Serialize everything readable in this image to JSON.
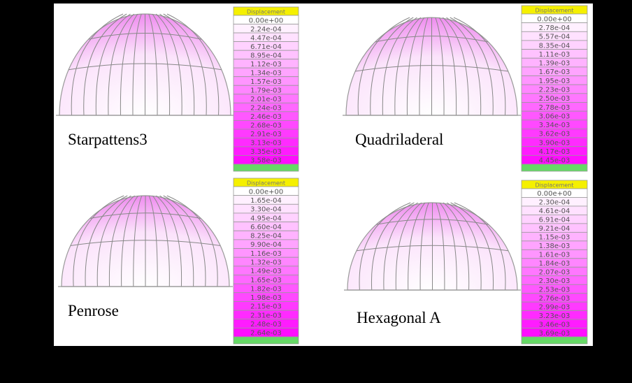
{
  "panels": [
    {
      "label": "Starpattens3",
      "legend": {
        "title": "Displacement",
        "entries": [
          "0.00e+00",
          "2.24e-04",
          "4.47e-04",
          "6.71e-04",
          "8.95e-04",
          "1.12e-03",
          "1.34e-03",
          "1.57e-03",
          "1.79e-03",
          "2.01e-03",
          "2.24e-03",
          "2.46e-03",
          "2.68e-03",
          "2.91e-03",
          "3.13e-03",
          "3.35e-03",
          "3.58e-03"
        ]
      }
    },
    {
      "label": "Quadriladeral",
      "legend": {
        "title": "Displacement",
        "entries": [
          "0.00e+00",
          "2.78e-04",
          "5.57e-04",
          "8.35e-04",
          "1.11e-03",
          "1.39e-03",
          "1.67e-03",
          "1.95e-03",
          "2.23e-03",
          "2.50e-03",
          "2.78e-03",
          "3.06e-03",
          "3.34e-03",
          "3.62e-03",
          "3.90e-03",
          "4.17e-03",
          "4.45e-03"
        ]
      }
    },
    {
      "label": "Penrose",
      "legend": {
        "title": "Displacement",
        "entries": [
          "0.00e+00",
          "1.65e-04",
          "3.30e-04",
          "4.95e-04",
          "6.60e-04",
          "8.25e-04",
          "9.90e-04",
          "1.16e-03",
          "1.32e-03",
          "1.49e-03",
          "1.65e-03",
          "1.82e-03",
          "1.98e-03",
          "2.15e-03",
          "2.31e-03",
          "2.48e-03",
          "2.64e-03"
        ]
      }
    },
    {
      "label": "Hexagonal A",
      "legend": {
        "title": "Displacement",
        "entries": [
          "0.00e+00",
          "2.30e-04",
          "4.61e-04",
          "6.91e-04",
          "9.21e-04",
          "1.15e-03",
          "1.38e-03",
          "1.61e-03",
          "1.84e-03",
          "2.07e-03",
          "2.30e-03",
          "2.53e-03",
          "2.76e-03",
          "2.99e-03",
          "3.23e-03",
          "3.46e-03",
          "3.69e-03"
        ]
      }
    }
  ]
}
